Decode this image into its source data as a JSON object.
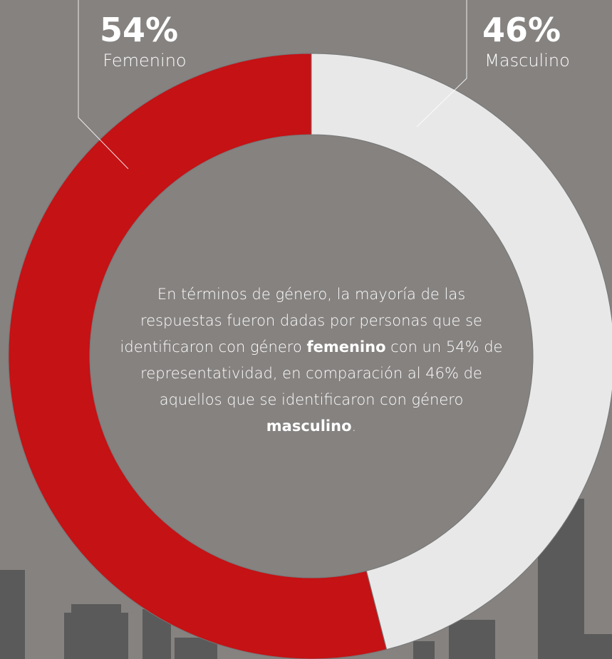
{
  "chart_data": {
    "type": "donut",
    "categories": [
      "Femenino",
      "Masculino"
    ],
    "values": [
      54,
      46
    ],
    "value_labels": [
      "54%",
      "46%"
    ],
    "colors": [
      "#c41215",
      "#e8e8e8"
    ],
    "annotation": [
      "En términos de género, la mayoría de las respuestas fueron dadas por personas que se identificaron con género ",
      "femenino",
      " con un 54% de representatividad, en comparación al 46% de aquellos que se identificaron con género ",
      "masculino",
      "."
    ]
  }
}
